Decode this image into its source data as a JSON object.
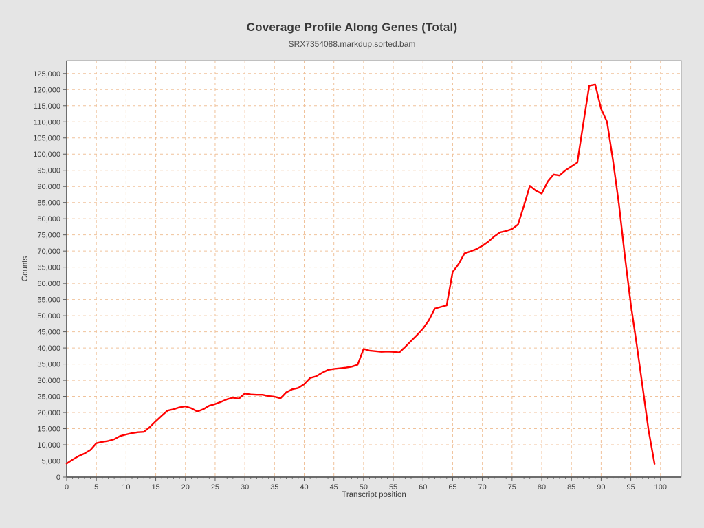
{
  "chart_data": {
    "type": "line",
    "title": "Coverage Profile Along Genes (Total)",
    "subtitle": "SRX7354088.markdup.sorted.bam",
    "xlabel": "Transcript position",
    "ylabel": "Counts",
    "xlim": [
      0,
      103.5
    ],
    "ylim": [
      0,
      129000
    ],
    "grid": true,
    "legend_position": "none",
    "x_ticks": [
      0,
      5,
      10,
      15,
      20,
      25,
      30,
      35,
      40,
      45,
      50,
      55,
      60,
      65,
      70,
      75,
      80,
      85,
      90,
      95,
      100
    ],
    "y_ticks": [
      0,
      5000,
      10000,
      15000,
      20000,
      25000,
      30000,
      35000,
      40000,
      45000,
      50000,
      55000,
      60000,
      65000,
      70000,
      75000,
      80000,
      85000,
      90000,
      95000,
      100000,
      105000,
      110000,
      115000,
      120000,
      125000
    ],
    "series": [
      {
        "name": "coverage",
        "color": "#ff0000",
        "x": [
          0,
          1,
          2,
          3,
          4,
          5,
          6,
          7,
          8,
          9,
          10,
          11,
          12,
          13,
          14,
          15,
          16,
          17,
          18,
          19,
          20,
          21,
          22,
          23,
          24,
          25,
          26,
          27,
          28,
          29,
          30,
          31,
          32,
          33,
          34,
          35,
          36,
          37,
          38,
          39,
          40,
          41,
          42,
          43,
          44,
          45,
          46,
          47,
          48,
          49,
          50,
          51,
          52,
          53,
          54,
          55,
          56,
          57,
          58,
          59,
          60,
          61,
          62,
          63,
          64,
          65,
          66,
          67,
          68,
          69,
          70,
          71,
          72,
          73,
          74,
          75,
          76,
          77,
          78,
          79,
          80,
          81,
          82,
          83,
          84,
          85,
          86,
          87,
          88,
          89,
          90,
          91,
          92,
          93,
          94,
          95,
          96,
          97,
          98,
          99
        ],
        "values": [
          4200,
          5400,
          6500,
          7300,
          8400,
          10500,
          10900,
          11200,
          11700,
          12700,
          13200,
          13600,
          13900,
          14000,
          15500,
          17300,
          19000,
          20600,
          21000,
          21600,
          21900,
          21300,
          20300,
          21000,
          22100,
          22600,
          23300,
          24100,
          24600,
          24300,
          25900,
          25600,
          25500,
          25500,
          25100,
          24900,
          24400,
          26300,
          27200,
          27600,
          28800,
          30700,
          31200,
          32300,
          33200,
          33500,
          33700,
          33900,
          34200,
          34800,
          39700,
          39200,
          39000,
          38800,
          38900,
          38800,
          38600,
          40300,
          42200,
          44000,
          46000,
          48600,
          52200,
          52700,
          53200,
          63500,
          66000,
          69300,
          69900,
          70600,
          71600,
          72900,
          74500,
          75800,
          76200,
          76800,
          78200,
          84000,
          90200,
          88700,
          87800,
          91500,
          93700,
          93400,
          95000,
          96200,
          97400,
          109500,
          121200,
          121600,
          114000,
          110000,
          98000,
          84500,
          68500,
          53500,
          41000,
          27700,
          14400,
          4100
        ]
      }
    ],
    "colors": {
      "page_bg": "#e5e5e5",
      "plot_bg": "#ffffff",
      "grid": "#f0c29b",
      "border": "#9a9a9a",
      "axis": "#5a5a5a",
      "tick": "#5a5a5a",
      "line": "#ff0000"
    }
  }
}
